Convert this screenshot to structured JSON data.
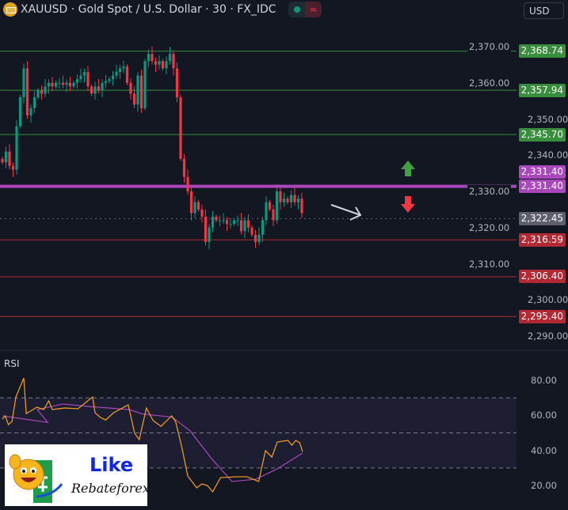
{
  "header": {
    "title": "XAUUSD · Gold Spot / U.S. Dollar · 30 · FX_IDC",
    "symbol_icon": "gold-bars-icon",
    "status_icon": "market-open-dot-icon",
    "wave_icon": "≈",
    "currency": "USD"
  },
  "price_axis": {
    "ticks": [
      "2,370.00",
      "2,360.00",
      "2,350.00",
      "2,340.00",
      "2,330.00",
      "2,320.00",
      "2,310.00",
      "2,300.00",
      "2,290.00"
    ],
    "tick_values": [
      2370,
      2360,
      2350,
      2340,
      2330,
      2320,
      2310,
      2300,
      2290
    ]
  },
  "levels": [
    {
      "price": 2368.74,
      "label": "2,368.74",
      "color": "#388e3c"
    },
    {
      "price": 2357.94,
      "label": "2,357.94",
      "color": "#388e3c"
    },
    {
      "price": 2345.7,
      "label": "2,345.70",
      "color": "#388e3c"
    },
    {
      "price": 2331.4,
      "label": "2,331.40",
      "color": "#ab47bc"
    },
    {
      "price": 2322.45,
      "label": "2,322.45",
      "color": "#5d606b"
    },
    {
      "price": 2316.59,
      "label": "2,316.59",
      "color": "#b22833"
    },
    {
      "price": 2306.4,
      "label": "2,306.40",
      "color": "#b22833"
    },
    {
      "price": 2295.4,
      "label": "2,295.40",
      "color": "#b22833"
    }
  ],
  "purple_second_label": "2,331.40",
  "colors": {
    "up": "#089981",
    "down": "#f23645",
    "rsi": "#f7a21b",
    "rsi_ma": "#ab47bc"
  },
  "candle_closes": [
    2338,
    2341,
    2337,
    2336,
    2348,
    2356,
    2364,
    2351,
    2353,
    2356,
    2358,
    2357,
    2359,
    2360,
    2359,
    2360,
    2360,
    2359.5,
    2360,
    2359,
    2360,
    2361,
    2362,
    2363,
    2359,
    2357,
    2359,
    2358,
    2360,
    2360.5,
    2361,
    2362,
    2363,
    2364,
    2364.5,
    2360,
    2357,
    2354,
    2362,
    2353,
    2366,
    2368,
    2366,
    2365,
    2366,
    2364,
    2366,
    2368,
    2364,
    2356,
    2339,
    2334,
    2330,
    2324,
    2327,
    2325,
    2323,
    2316,
    2320,
    2323,
    2322,
    2322,
    2322,
    2321,
    2321,
    2322,
    2322,
    2319,
    2322,
    2320,
    2318,
    2316,
    2318,
    2322,
    2327,
    2325,
    2322,
    2330,
    2327,
    2328,
    2327,
    2329,
    2327,
    2328,
    2324
  ],
  "rsi": {
    "title": "RSI",
    "ticks": [
      "80.00",
      "60.00",
      "40.00",
      "20.00"
    ],
    "tick_values": [
      80,
      60,
      40,
      20
    ],
    "bands": [
      70,
      50,
      30
    ],
    "line": [
      [
        0,
        57.9
      ],
      [
        0.8,
        59.7
      ],
      [
        1.7,
        54.7
      ],
      [
        2.7,
        56.5
      ],
      [
        3.8,
        70.5
      ],
      [
        6,
        81.3
      ],
      [
        6.7,
        61
      ],
      [
        9.7,
        64.7
      ],
      [
        11.6,
        63.3
      ],
      [
        13,
        68.3
      ],
      [
        14,
        63.3
      ],
      [
        17.5,
        64.2
      ],
      [
        21.2,
        63.8
      ],
      [
        25.3,
        70.5
      ],
      [
        26,
        61.5
      ],
      [
        27.5,
        58.8
      ],
      [
        29,
        57.4
      ],
      [
        31.2,
        61.5
      ],
      [
        35.3,
        66
      ],
      [
        37.1,
        49.8
      ],
      [
        38.4,
        46.2
      ],
      [
        40.4,
        64.2
      ],
      [
        42.3,
        57
      ],
      [
        44.5,
        53.8
      ],
      [
        47.5,
        59.7
      ],
      [
        48.6,
        56.5
      ],
      [
        50.4,
        41.2
      ],
      [
        52,
        25.4
      ],
      [
        54.5,
        18.7
      ],
      [
        56,
        20.9
      ],
      [
        57.5,
        20
      ],
      [
        59,
        16.4
      ],
      [
        61.2,
        24.5
      ],
      [
        66,
        25
      ],
      [
        68.6,
        25
      ],
      [
        71.9,
        22.3
      ],
      [
        73.8,
        39.9
      ],
      [
        75.6,
        36.2
      ],
      [
        77.1,
        44.8
      ],
      [
        80.1,
        45.7
      ],
      [
        81.2,
        43
      ],
      [
        82.3,
        45.7
      ],
      [
        83.4,
        44.4
      ],
      [
        84.2,
        39.4
      ]
    ],
    "ma": [
      [
        0,
        59.7
      ],
      [
        12.7,
        56
      ],
      [
        9.8,
        63.3
      ],
      [
        17,
        66.5
      ],
      [
        25.3,
        64.9
      ],
      [
        35.6,
        63.3
      ],
      [
        39.3,
        60.8
      ],
      [
        47.6,
        59
      ],
      [
        52.7,
        51.1
      ],
      [
        58.7,
        35.3
      ],
      [
        64.4,
        22.3
      ],
      [
        71.1,
        23.6
      ],
      [
        77.1,
        29.5
      ],
      [
        84.2,
        38.5
      ]
    ]
  },
  "annotations": {
    "up_arrow": "arrow-up-icon",
    "down_arrow": "arrow-down-icon",
    "pointer_arrow": "arrow-right-icon"
  },
  "logo": {
    "like": "Like",
    "brand": "Rebateforex"
  }
}
